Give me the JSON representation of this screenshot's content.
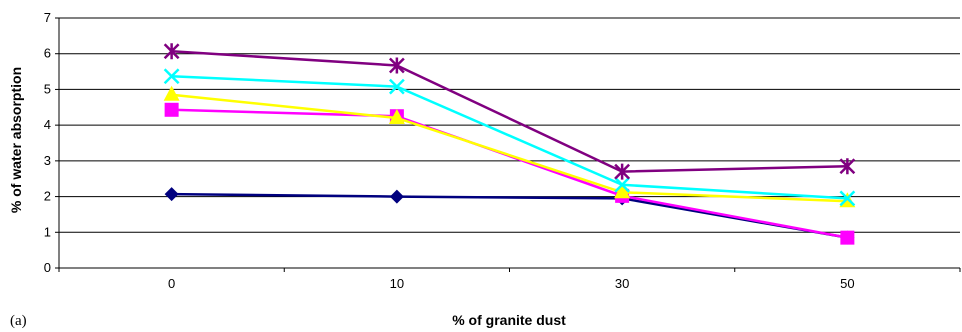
{
  "panel_label": "(a)",
  "chart_data": {
    "type": "line",
    "title": "",
    "xlabel": "% of granite dust",
    "ylabel": "% of water absorption",
    "categories": [
      "0",
      "10",
      "30",
      "50"
    ],
    "ylim": [
      0,
      7
    ],
    "yticks": [
      "0",
      "1",
      "2",
      "3",
      "4",
      "5",
      "6",
      "7"
    ],
    "grid": true,
    "legend": "none",
    "series": [
      {
        "color": "#00007f",
        "marker": "diamond",
        "values": [
          2.07,
          2.0,
          1.95,
          0.85
        ]
      },
      {
        "color": "#ff00ff",
        "marker": "square",
        "values": [
          4.43,
          4.25,
          2.02,
          0.85
        ]
      },
      {
        "color": "#ffff00",
        "marker": "triangle",
        "values": [
          4.85,
          4.2,
          2.12,
          1.87
        ]
      },
      {
        "color": "#00ffff",
        "marker": "x",
        "values": [
          5.37,
          5.08,
          2.33,
          1.95
        ]
      },
      {
        "color": "#800080",
        "marker": "asterisk",
        "values": [
          6.07,
          5.67,
          2.7,
          2.85
        ]
      }
    ]
  }
}
